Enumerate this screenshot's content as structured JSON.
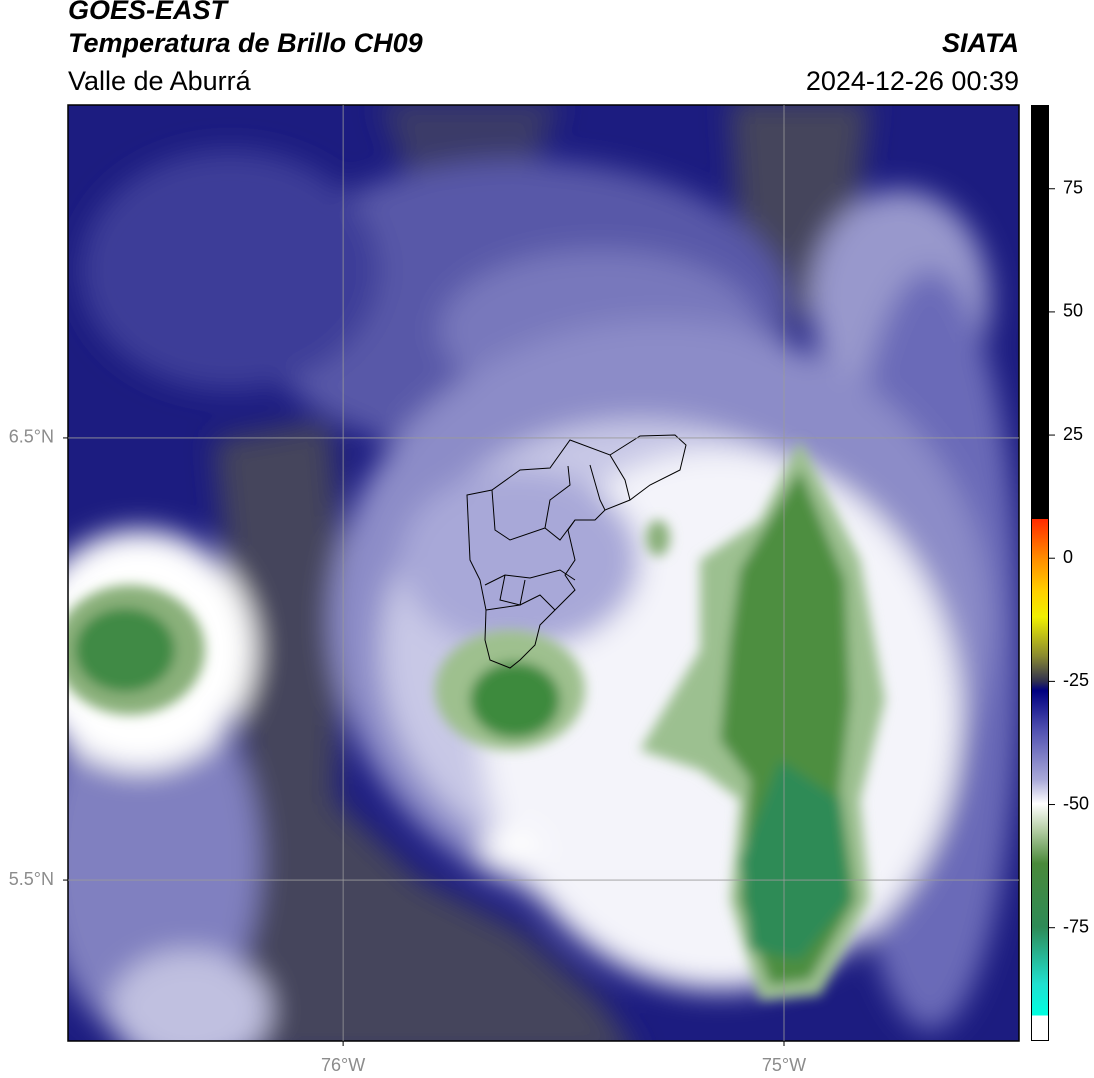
{
  "header": {
    "title": "GOES-EAST",
    "subtitle": "Temperatura de Brillo CH09",
    "region": "Valle de Aburrá",
    "source": "SIATA",
    "datetime": "2024-12-26 00:39"
  },
  "map": {
    "xlim": [
      -76.624,
      -74.467
    ],
    "ylim": [
      5.136,
      7.253
    ],
    "xticks": [
      {
        "value": -76,
        "label": "76°W"
      },
      {
        "value": -75,
        "label": "75°W"
      }
    ],
    "yticks": [
      {
        "value": 6.5,
        "label": "6.5°N"
      },
      {
        "value": 5.5,
        "label": "5.5°N"
      }
    ]
  },
  "colorbar": {
    "lim": [
      -98,
      92
    ],
    "ticks": [
      75,
      50,
      25,
      0,
      -25,
      -50,
      -75
    ]
  }
}
